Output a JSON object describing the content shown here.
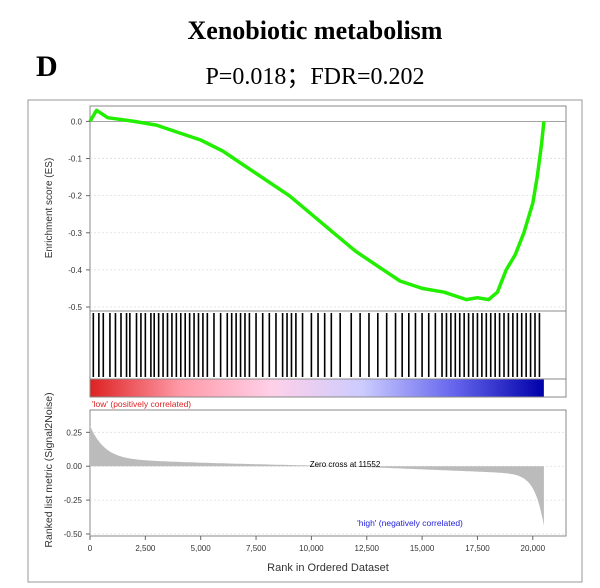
{
  "panel_label": "D",
  "chart_data": {
    "type": "line",
    "title": "Xenobiotic metabolism",
    "subtitle": "P=0.018；FDR=0.202",
    "es_plot": {
      "ylabel": "Enrichment score (ES)",
      "ylim": [
        -0.5,
        0.02
      ],
      "yticks": [
        "0.0",
        "-0.1",
        "-0.2",
        "-0.3",
        "-0.4",
        "-0.5"
      ],
      "ytick_values": [
        0.0,
        -0.1,
        -0.2,
        -0.3,
        -0.4,
        -0.5
      ],
      "x": [
        0,
        300,
        800,
        2000,
        3000,
        4000,
        5000,
        6000,
        7000,
        8000,
        9000,
        10000,
        11000,
        12000,
        13000,
        14000,
        15000,
        16000,
        17000,
        17500,
        18000,
        18400,
        18800,
        19200,
        19600,
        20000,
        20200,
        20400,
        20500
      ],
      "y": [
        0.0,
        0.03,
        0.01,
        0.0,
        -0.01,
        -0.03,
        -0.05,
        -0.08,
        -0.12,
        -0.16,
        -0.2,
        -0.25,
        -0.3,
        -0.35,
        -0.39,
        -0.43,
        -0.45,
        -0.46,
        -0.48,
        -0.475,
        -0.48,
        -0.46,
        -0.4,
        -0.36,
        -0.3,
        -0.22,
        -0.15,
        -0.06,
        0.0
      ],
      "line_color": "#22ee00"
    },
    "hits": [
      150,
      400,
      600,
      900,
      1150,
      1400,
      1650,
      1800,
      2100,
      2300,
      2500,
      2750,
      2900,
      3100,
      3300,
      3500,
      3700,
      3900,
      4100,
      4300,
      4500,
      4700,
      4900,
      5100,
      5300,
      5600,
      5900,
      6200,
      6400,
      6600,
      6800,
      7000,
      7200,
      7500,
      7800,
      8100,
      8400,
      8700,
      8900,
      9100,
      9300,
      9600,
      10000,
      10300,
      10600,
      10900,
      11300,
      11800,
      12200,
      12600,
      13000,
      13400,
      13800,
      14100,
      14400,
      14700,
      15000,
      15300,
      15600,
      15900,
      16100,
      16300,
      16500,
      16700,
      16900,
      17100,
      17300,
      17500,
      17700,
      17900,
      18100,
      18300,
      18500,
      18700,
      18900,
      19100,
      19300,
      19500,
      19700,
      19900,
      20100,
      20300
    ],
    "heatmap": {
      "low_label": "'low' (positively correlated)",
      "high_label": "'high' (negatively correlated)",
      "colors": [
        "#dd2222",
        "#ff9aa8",
        "#ffd0e8",
        "#ccccff",
        "#6666ee",
        "#0000aa"
      ]
    },
    "ranked_metric": {
      "ylabel": "Ranked list metric (Signal2Noise)",
      "ylim": [
        -0.5,
        0.4
      ],
      "yticks": [
        "0.25",
        "0.00",
        "-0.25",
        "-0.50"
      ],
      "ytick_values": [
        0.25,
        0.0,
        -0.25,
        -0.5
      ],
      "zero_cross_label": "Zero cross at 11552",
      "zero_cross": 11552,
      "fill_color": "#bbbbbb"
    },
    "xlabel": "Rank in Ordered Dataset",
    "xlim": [
      0,
      21500
    ],
    "xticks": [
      "0",
      "2,500",
      "5,000",
      "7,500",
      "10,000",
      "12,500",
      "15,000",
      "17,500",
      "20,000"
    ],
    "xtick_values": [
      0,
      2500,
      5000,
      7500,
      10000,
      12500,
      15000,
      17500,
      20000
    ],
    "n_genes": 20500
  }
}
